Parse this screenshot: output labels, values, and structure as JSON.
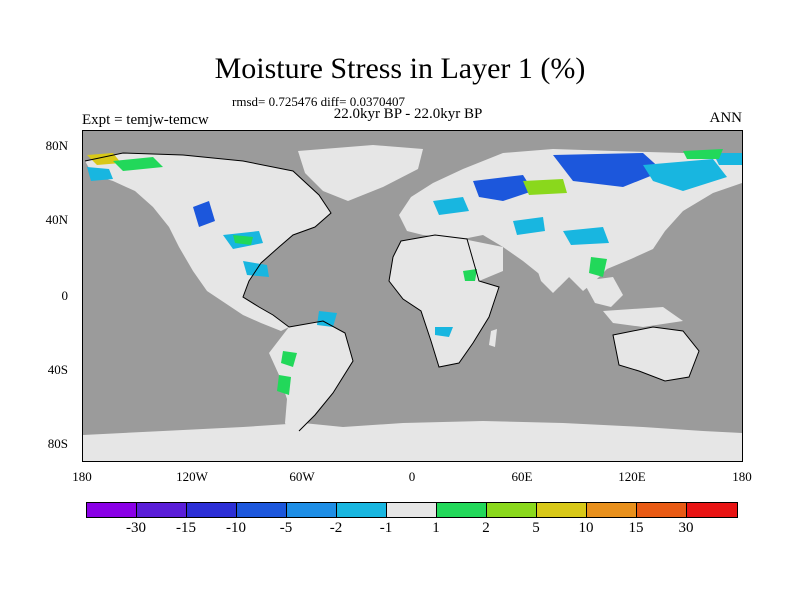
{
  "title": "Moisture Stress in Layer 1 (%)",
  "stats_text": "rmsd= 0.725476 diff= 0.0370407",
  "period_text": "22.0kyr BP - 22.0kyr BP",
  "expt_text": "Expt = temjw-temcw",
  "season": "ANN",
  "map": {
    "projection": "cylindrical equidistant",
    "lon_range": [
      -180,
      180
    ],
    "lat_range": [
      -90,
      90
    ],
    "ocean_color": "#9b9b9b",
    "land_color": "#e6e6e6",
    "y_ticks": [
      {
        "label": "80N",
        "lat": 80
      },
      {
        "label": "40N",
        "lat": 40
      },
      {
        "label": "0",
        "lat": 0
      },
      {
        "label": "40S",
        "lat": -40
      },
      {
        "label": "80S",
        "lat": -80
      }
    ],
    "x_ticks": [
      {
        "label": "180",
        "lon": -180
      },
      {
        "label": "120W",
        "lon": -120
      },
      {
        "label": "60W",
        "lon": -60
      },
      {
        "label": "0",
        "lon": 0
      },
      {
        "label": "60E",
        "lon": 60
      },
      {
        "label": "120E",
        "lon": 120
      },
      {
        "label": "180",
        "lon": 180
      }
    ]
  },
  "colorbar": {
    "colors": [
      "#8a00e6",
      "#5a1ed8",
      "#2c2fd6",
      "#1c57dc",
      "#1e8ee6",
      "#18b6e0",
      "#e6e6e6",
      "#22d85a",
      "#8ad81c",
      "#d8c818",
      "#e8901c",
      "#e85a14",
      "#e81414"
    ],
    "labels": [
      "-30",
      "-15",
      "-10",
      "-5",
      "-2",
      "-1",
      "1",
      "2",
      "5",
      "10",
      "15",
      "30"
    ]
  }
}
